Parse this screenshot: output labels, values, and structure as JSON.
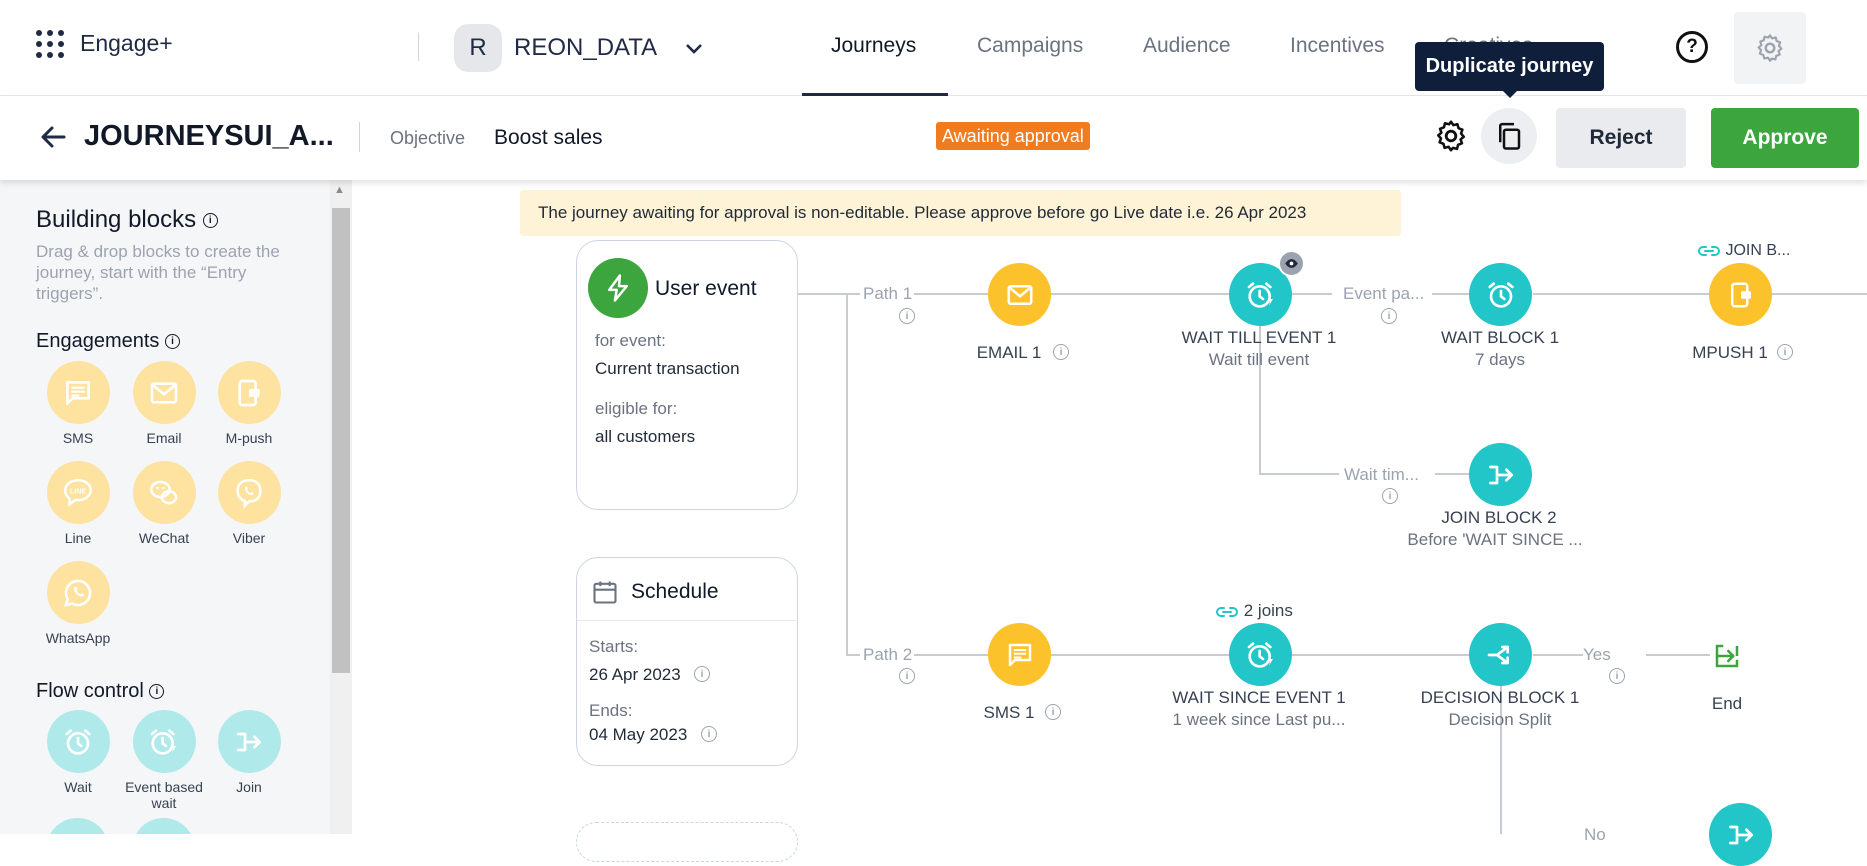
{
  "topnav": {
    "brand": "Engage+",
    "workspace_initial": "R",
    "workspace_name": "REON_DATA",
    "tabs": [
      "Journeys",
      "Campaigns",
      "Audience",
      "Incentives",
      "Creatives"
    ],
    "active_tab": "Journeys",
    "help_label": "?",
    "tooltip": "Duplicate journey"
  },
  "header": {
    "title": "JOURNEYSUI_A...",
    "objective_label": "Objective",
    "objective_value": "Boost sales",
    "status": "Awaiting approval",
    "reject_label": "Reject",
    "approve_label": "Approve"
  },
  "sidebar": {
    "title": "Building blocks",
    "description": "Drag & drop blocks to create the journey, start with the “Entry triggers”.",
    "engagements_title": "Engagements",
    "engagements": [
      {
        "label": "SMS",
        "icon": "sms-icon"
      },
      {
        "label": "Email",
        "icon": "email-icon"
      },
      {
        "label": "M-push",
        "icon": "mobile-push-icon"
      },
      {
        "label": "Line",
        "icon": "line-icon"
      },
      {
        "label": "WeChat",
        "icon": "wechat-icon"
      },
      {
        "label": "Viber",
        "icon": "viber-icon"
      },
      {
        "label": "WhatsApp",
        "icon": "whatsapp-icon"
      }
    ],
    "flow_title": "Flow control",
    "flow": [
      {
        "label": "Wait",
        "icon": "alarm-icon"
      },
      {
        "label": "Event based wait",
        "icon": "alarm-event-icon"
      },
      {
        "label": "Join",
        "icon": "join-icon"
      }
    ]
  },
  "canvas": {
    "banner": "The journey awaiting for approval is non-editable. Please approve before go Live date i.e. 26 Apr 2023",
    "user_event": {
      "title": "User event",
      "for_event_label": "for event:",
      "for_event_value": "Current transaction",
      "eligible_label": "eligible for:",
      "eligible_value": "all customers"
    },
    "schedule": {
      "title": "Schedule",
      "starts_label": "Starts:",
      "starts_value": "26 Apr 2023",
      "ends_label": "Ends:",
      "ends_value": "04 May 2023"
    },
    "paths": {
      "path1": "Path 1",
      "path2": "Path 2",
      "event_path": "Event pa...",
      "wait_time": "Wait tim...",
      "yes": "Yes",
      "no": "No"
    },
    "nodes": {
      "email1": {
        "title": "EMAIL 1"
      },
      "wait_till_event1": {
        "title": "WAIT TILL EVENT 1",
        "sub": "Wait till event"
      },
      "wait_block1": {
        "title": "WAIT BLOCK 1",
        "sub": "7 days"
      },
      "mpush1": {
        "title": "MPUSH 1",
        "join_tag": "JOIN B..."
      },
      "join_block2": {
        "title": "JOIN BLOCK 2",
        "sub": "Before 'WAIT SINCE ..."
      },
      "sms1": {
        "title": "SMS 1"
      },
      "wait_since_event1": {
        "title": "WAIT SINCE EVENT 1",
        "sub": "1 week since Last pu...",
        "joins": "2 joins"
      },
      "decision_block1": {
        "title": "DECISION BLOCK 1",
        "sub": "Decision Split"
      },
      "end": {
        "title": "End"
      }
    }
  },
  "colors": {
    "approve": "#3da53d",
    "status_badge": "#f07c1f",
    "engagement_node": "#fcc22c",
    "flow_node": "#23c6c8",
    "nav_dark": "#1f2a44"
  }
}
